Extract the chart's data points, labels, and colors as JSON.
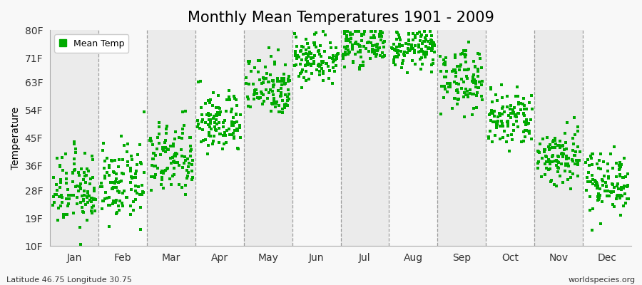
{
  "title": "Monthly Mean Temperatures 1901 - 2009",
  "ylabel": "Temperature",
  "bottom_left": "Latitude 46.75 Longitude 30.75",
  "bottom_right": "worldspecies.org",
  "legend_label": "Mean Temp",
  "ytick_labels": [
    "10F",
    "19F",
    "28F",
    "36F",
    "45F",
    "54F",
    "63F",
    "71F",
    "80F"
  ],
  "ytick_values": [
    10,
    19,
    28,
    36,
    45,
    54,
    63,
    71,
    80
  ],
  "ylim": [
    10,
    80
  ],
  "months": [
    "Jan",
    "Feb",
    "Mar",
    "Apr",
    "May",
    "Jun",
    "Jul",
    "Aug",
    "Sep",
    "Oct",
    "Nov",
    "Dec"
  ],
  "monthly_mean_F": [
    28,
    30,
    38,
    50,
    62,
    71,
    75,
    74,
    64,
    51,
    39,
    31
  ],
  "monthly_std_F": [
    6,
    6,
    6,
    5,
    5,
    4,
    3,
    3,
    5,
    5,
    5,
    5
  ],
  "n_years": 109,
  "dot_color": "#00aa00",
  "dot_size": 7,
  "bg_color": "#f8f8f8",
  "alt_bg_color": "#ebebeb",
  "title_fontsize": 15,
  "axis_fontsize": 10,
  "tick_fontsize": 10,
  "annotation_fontsize": 8
}
